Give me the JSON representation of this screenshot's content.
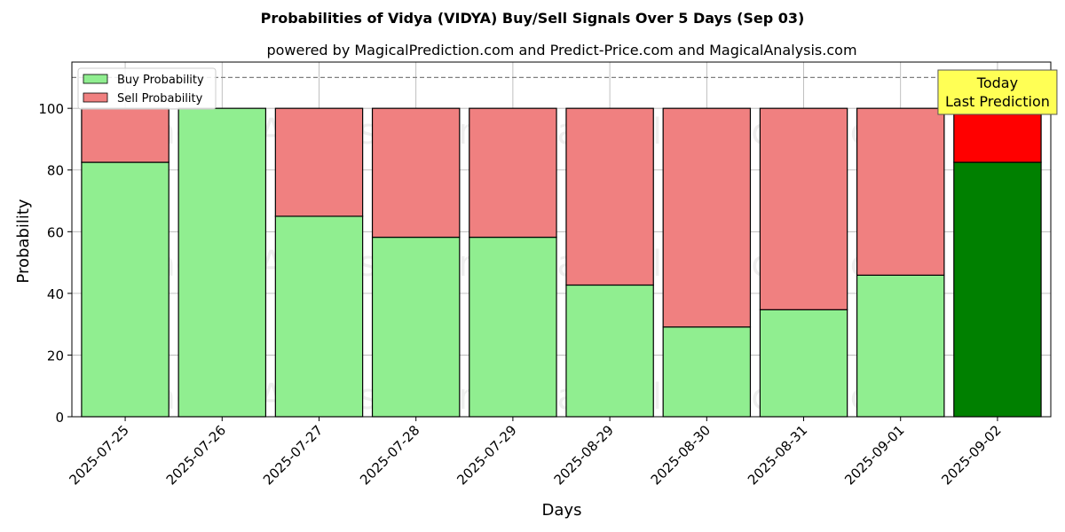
{
  "chart_data": {
    "type": "bar",
    "stacked": true,
    "title": "Probabilities of Vidya (VIDYA) Buy/Sell Signals Over 5 Days (Sep 03)",
    "subtitle": "powered by MagicalPrediction.com and Predict-Price.com and MagicalAnalysis.com",
    "xlabel": "Days",
    "ylabel": "Probability",
    "ylim": [
      0,
      115
    ],
    "yticks": [
      0,
      20,
      40,
      60,
      80,
      100
    ],
    "grid": true,
    "legend_position": "top-left",
    "categories": [
      "2025-07-25",
      "2025-07-26",
      "2025-07-27",
      "2025-07-28",
      "2025-07-29",
      "2025-08-29",
      "2025-08-30",
      "2025-08-31",
      "2025-09-01",
      "2025-09-02"
    ],
    "series": [
      {
        "name": "Buy Probability",
        "color": "#90ee90",
        "highlight_color": "#008000",
        "values": [
          82.5,
          100,
          65,
          58.2,
          58.2,
          42.7,
          29.1,
          34.7,
          45.9,
          82.5
        ]
      },
      {
        "name": "Sell Probability",
        "color": "#f08080",
        "highlight_color": "#ff0000",
        "values": [
          17.5,
          0,
          35,
          41.8,
          41.8,
          57.3,
          70.9,
          65.3,
          54.1,
          17.5
        ]
      }
    ],
    "reference_line": {
      "y": 110,
      "style": "dashed",
      "color": "#808080"
    },
    "annotation": {
      "lines": [
        "Today",
        "Last Prediction"
      ],
      "background": "#ffff55",
      "target_index": 9
    },
    "watermarks": [
      "MagicalAnalysis.com",
      "MagicalPrediction.com",
      "MagicalAnalysis.com",
      "MagicalPrediction.com",
      "MagicalAnalysis.com",
      "MagicalPrediction.com"
    ]
  }
}
